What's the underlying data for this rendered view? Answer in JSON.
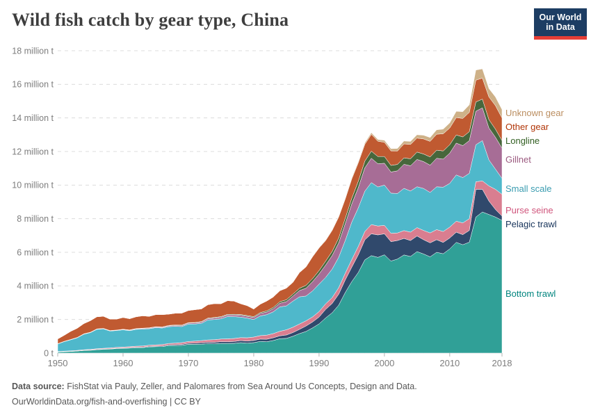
{
  "header": {
    "title": "Wild fish catch by gear type, China",
    "logo": {
      "line1": "Our World",
      "line2": "in Data"
    }
  },
  "footer": {
    "source_label": "Data source:",
    "source_text": " FishStat via Pauly, Zeller, and Palomares from Sea Around Us Concepts, Design and Data.",
    "line2": "OurWorldinData.org/fish-and-overfishing | CC BY"
  },
  "colors": {
    "background": "#ffffff",
    "logo_bg": "#1d3d63",
    "logo_red": "#e63e36",
    "title_text": "#3e3e3e",
    "axis_text": "#7d7d7d",
    "grid": "#dcdcdc",
    "baseline": "#c8c8c8",
    "footer_text": "#575757"
  },
  "chart_data": {
    "type": "area",
    "stacked": true,
    "title": "Wild fish catch by gear type, China",
    "unit": "million tonnes",
    "xlabel": "",
    "ylabel": "",
    "xlim": [
      1950,
      2018
    ],
    "ylim": [
      0,
      18
    ],
    "grid": "dashed-horizontal",
    "legend_position": "right-outside",
    "x_years": [
      1950,
      1953,
      1956,
      1959,
      1962,
      1965,
      1968,
      1971,
      1974,
      1977,
      1980,
      1983,
      1986,
      1989,
      1992,
      1994,
      1996,
      1998,
      2000,
      2002,
      2004,
      2006,
      2008,
      2010,
      2012,
      2013,
      2014,
      2015,
      2016,
      2017,
      2018
    ],
    "series": [
      {
        "name": "bottom-trawl",
        "label": "Bottom trawl",
        "fill": "#30a097",
        "label_color": "#00847e",
        "values": [
          0.06,
          0.12,
          0.2,
          0.27,
          0.32,
          0.38,
          0.45,
          0.52,
          0.55,
          0.58,
          0.62,
          0.75,
          1.0,
          1.5,
          2.4,
          3.6,
          4.8,
          5.8,
          5.85,
          5.6,
          5.75,
          5.9,
          6.0,
          6.2,
          6.45,
          6.6,
          8.1,
          8.4,
          8.25,
          8.1,
          7.9
        ]
      },
      {
        "name": "pelagic-trawl",
        "label": "Pelagic trawl",
        "fill": "#30496c",
        "label_color": "#16335a",
        "values": [
          0.01,
          0.01,
          0.02,
          0.02,
          0.03,
          0.04,
          0.05,
          0.07,
          0.09,
          0.11,
          0.13,
          0.16,
          0.22,
          0.35,
          0.55,
          0.75,
          1.05,
          1.3,
          1.25,
          1.1,
          0.95,
          0.85,
          0.75,
          0.65,
          0.6,
          0.7,
          1.65,
          1.35,
          0.8,
          0.45,
          0.25
        ]
      },
      {
        "name": "purse-seine",
        "label": "Purse seine",
        "fill": "#d97e90",
        "label_color": "#d0557c",
        "values": [
          0.02,
          0.03,
          0.04,
          0.05,
          0.06,
          0.07,
          0.09,
          0.12,
          0.16,
          0.18,
          0.2,
          0.25,
          0.32,
          0.3,
          0.35,
          0.4,
          0.5,
          0.55,
          0.5,
          0.45,
          0.5,
          0.55,
          0.6,
          0.65,
          0.7,
          0.7,
          0.45,
          0.5,
          0.9,
          1.2,
          1.3
        ]
      },
      {
        "name": "small-scale",
        "label": "Small scale",
        "fill": "#4fb8cb",
        "label_color": "#3a9cb0",
        "values": [
          0.45,
          0.75,
          1.15,
          1.0,
          1.0,
          1.02,
          1.0,
          1.02,
          1.2,
          1.3,
          1.05,
          1.3,
          1.55,
          1.55,
          1.7,
          1.95,
          2.3,
          2.5,
          2.4,
          2.35,
          2.45,
          2.5,
          2.55,
          2.6,
          2.7,
          2.7,
          2.2,
          2.4,
          1.55,
          1.2,
          0.95
        ]
      },
      {
        "name": "gillnet",
        "label": "Gillnet",
        "fill": "#a76d96",
        "label_color": "#9c5b80",
        "values": [
          0.01,
          0.01,
          0.02,
          0.02,
          0.03,
          0.04,
          0.05,
          0.06,
          0.08,
          0.1,
          0.12,
          0.18,
          0.3,
          0.55,
          0.8,
          1.0,
          1.2,
          1.45,
          1.3,
          1.35,
          1.5,
          1.6,
          1.7,
          1.8,
          1.9,
          1.95,
          2.0,
          1.95,
          1.9,
          1.9,
          1.8
        ]
      },
      {
        "name": "longline",
        "label": "Longline",
        "fill": "#47673c",
        "label_color": "#336023",
        "values": [
          0.01,
          0.01,
          0.01,
          0.01,
          0.02,
          0.02,
          0.03,
          0.03,
          0.04,
          0.04,
          0.05,
          0.08,
          0.12,
          0.18,
          0.25,
          0.32,
          0.38,
          0.42,
          0.4,
          0.38,
          0.42,
          0.45,
          0.48,
          0.5,
          0.52,
          0.53,
          0.55,
          0.52,
          0.5,
          0.48,
          0.45
        ]
      },
      {
        "name": "other-gear",
        "label": "Other gear",
        "fill": "#c05a31",
        "label_color": "#b13507",
        "values": [
          0.28,
          0.55,
          0.72,
          0.65,
          0.7,
          0.72,
          0.7,
          0.76,
          0.82,
          0.78,
          0.45,
          0.62,
          0.7,
          1.3,
          1.25,
          1.15,
          1.1,
          1.0,
          0.85,
          0.8,
          0.85,
          0.9,
          0.95,
          1.0,
          1.1,
          1.15,
          1.3,
          1.25,
          1.35,
          1.4,
          1.35
        ]
      },
      {
        "name": "unknown-gear",
        "label": "Unknown gear",
        "fill": "#ceb188",
        "label_color": "#bb8e60",
        "values": [
          0,
          0,
          0,
          0,
          0,
          0,
          0,
          0,
          0,
          0,
          0,
          0,
          0.01,
          0.02,
          0.04,
          0.06,
          0.08,
          0.1,
          0.12,
          0.15,
          0.18,
          0.22,
          0.26,
          0.3,
          0.4,
          0.45,
          0.6,
          0.55,
          0.5,
          0.52,
          0.5
        ]
      }
    ],
    "yticks": [
      {
        "v": 0,
        "label": "0 t"
      },
      {
        "v": 2,
        "label": "2 million t"
      },
      {
        "v": 4,
        "label": "4 million t"
      },
      {
        "v": 6,
        "label": "6 million t"
      },
      {
        "v": 8,
        "label": "8 million t"
      },
      {
        "v": 10,
        "label": "10 million t"
      },
      {
        "v": 12,
        "label": "12 million t"
      },
      {
        "v": 14,
        "label": "14 million t"
      },
      {
        "v": 16,
        "label": "16 million t"
      },
      {
        "v": 18,
        "label": "18 million t"
      }
    ],
    "xticks": [
      {
        "year": 1950,
        "label": "1950"
      },
      {
        "year": 1960,
        "label": "1960"
      },
      {
        "year": 1970,
        "label": "1970"
      },
      {
        "year": 1980,
        "label": "1980"
      },
      {
        "year": 1990,
        "label": "1990"
      },
      {
        "year": 2000,
        "label": "2000"
      },
      {
        "year": 2010,
        "label": "2010"
      },
      {
        "year": 2018,
        "label": "2018"
      }
    ]
  }
}
